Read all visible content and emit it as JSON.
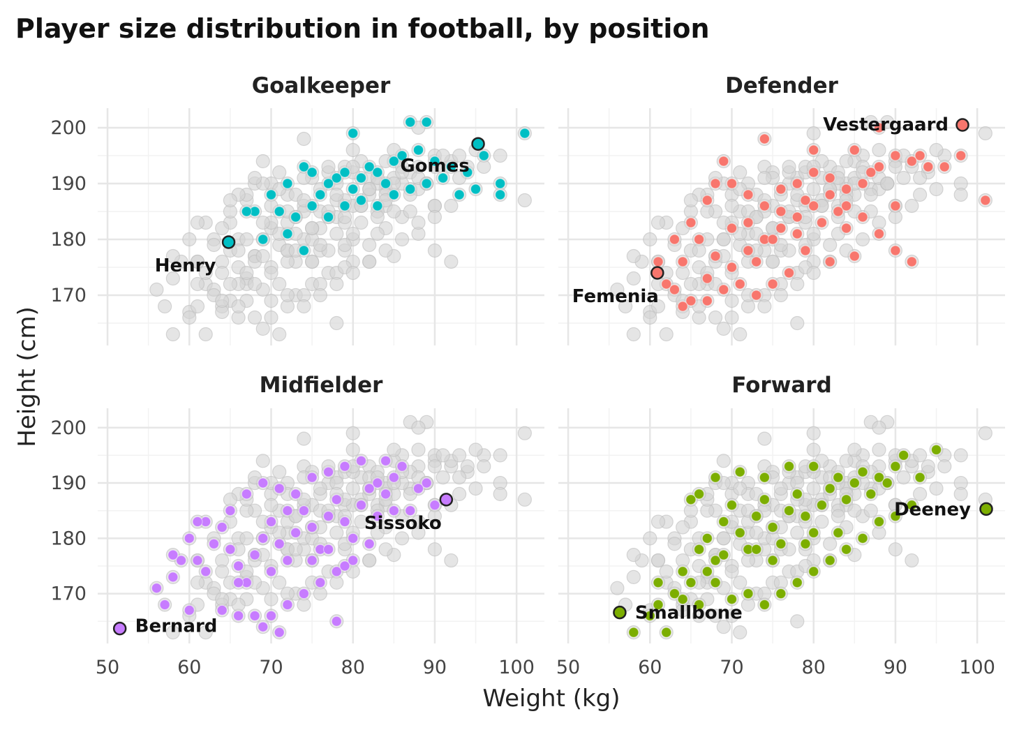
{
  "chart_data": {
    "type": "scatter",
    "title": "Player size distribution in football, by position",
    "xlabel": "Weight (kg)",
    "ylabel": "Height (cm)",
    "xlim": [
      48.8,
      103.4
    ],
    "ylim": [
      161,
      203.5
    ],
    "x_ticks": [
      "50",
      "60",
      "70",
      "80",
      "90",
      "100"
    ],
    "y_ticks": [
      "170",
      "180",
      "190",
      "200"
    ],
    "grid": true,
    "background_color": "#d3d3d3",
    "note_background": "all players shown in grey in every panel",
    "panels": [
      {
        "name": "Goalkeeper",
        "color": "#00BFC4",
        "points": [
          [
            78,
            191
          ],
          [
            80,
            189
          ],
          [
            82,
            193
          ],
          [
            76,
            188
          ],
          [
            84,
            190
          ],
          [
            86,
            195
          ],
          [
            88,
            196
          ],
          [
            90,
            194
          ],
          [
            92,
            193
          ],
          [
            94,
            192
          ],
          [
            96,
            195
          ],
          [
            98,
            190
          ],
          [
            98,
            188
          ],
          [
            101,
            199
          ],
          [
            87,
            201
          ],
          [
            89,
            201
          ],
          [
            80,
            199
          ],
          [
            74,
            193
          ],
          [
            72,
            190
          ],
          [
            70,
            188
          ],
          [
            68,
            185
          ],
          [
            67,
            185
          ],
          [
            72,
            181
          ],
          [
            74,
            178
          ],
          [
            75,
            186
          ],
          [
            77,
            184
          ],
          [
            79,
            186
          ],
          [
            81,
            187
          ],
          [
            83,
            186
          ],
          [
            85,
            188
          ],
          [
            87,
            189
          ],
          [
            89,
            190
          ],
          [
            91,
            191
          ],
          [
            93,
            188
          ],
          [
            95,
            189
          ],
          [
            79,
            192
          ],
          [
            81,
            191
          ],
          [
            83,
            192
          ],
          [
            85,
            194
          ],
          [
            77,
            190
          ],
          [
            75,
            192
          ],
          [
            73,
            184
          ],
          [
            71,
            185
          ],
          [
            69,
            180
          ]
        ],
        "highlights": [
          {
            "label": "Gomes",
            "x": 95.3,
            "y": 197.1
          },
          {
            "label": "Henry",
            "x": 64.8,
            "y": 179.5
          }
        ]
      },
      {
        "name": "Defender",
        "color": "#F8766D",
        "points": [
          [
            70,
            175
          ],
          [
            72,
            178
          ],
          [
            74,
            180
          ],
          [
            76,
            182
          ],
          [
            78,
            184
          ],
          [
            80,
            186
          ],
          [
            82,
            188
          ],
          [
            84,
            189
          ],
          [
            86,
            190
          ],
          [
            88,
            193
          ],
          [
            90,
            195
          ],
          [
            92,
            194
          ],
          [
            94,
            193
          ],
          [
            96,
            193
          ],
          [
            98,
            195
          ],
          [
            101,
            187
          ],
          [
            66,
            180
          ],
          [
            68,
            177
          ],
          [
            64,
            176
          ],
          [
            62,
            172
          ],
          [
            61,
            176
          ],
          [
            63,
            180
          ],
          [
            65,
            183
          ],
          [
            67,
            187
          ],
          [
            70,
            190
          ],
          [
            72,
            188
          ],
          [
            74,
            186
          ],
          [
            76,
            189
          ],
          [
            78,
            190
          ],
          [
            80,
            192
          ],
          [
            82,
            191
          ],
          [
            84,
            186
          ],
          [
            86,
            184
          ],
          [
            88,
            181
          ],
          [
            90,
            178
          ],
          [
            92,
            176
          ],
          [
            85,
            177
          ],
          [
            82,
            176
          ],
          [
            79,
            178
          ],
          [
            77,
            174
          ],
          [
            75,
            172
          ],
          [
            73,
            170
          ],
          [
            71,
            172
          ],
          [
            69,
            171
          ],
          [
            67,
            169
          ],
          [
            65,
            169
          ],
          [
            63,
            171
          ],
          [
            72,
            183
          ],
          [
            75,
            180
          ],
          [
            78,
            181
          ],
          [
            81,
            183
          ],
          [
            83,
            185
          ],
          [
            79,
            187
          ],
          [
            76,
            185
          ],
          [
            73,
            176
          ],
          [
            70,
            182
          ],
          [
            67,
            173
          ],
          [
            64,
            168
          ],
          [
            68,
            190
          ],
          [
            69,
            194
          ],
          [
            74,
            198
          ],
          [
            80,
            196
          ],
          [
            85,
            196
          ],
          [
            88,
            200
          ],
          [
            93,
            195
          ],
          [
            87,
            192
          ],
          [
            90,
            186
          ],
          [
            84,
            182
          ]
        ],
        "highlights": [
          {
            "label": "Vestergaard",
            "x": 98.2,
            "y": 200.5
          },
          {
            "label": "Femenia",
            "x": 60.9,
            "y": 174
          }
        ]
      },
      {
        "name": "Midfielder",
        "color": "#C77CFF",
        "points": [
          [
            56,
            171
          ],
          [
            57,
            168
          ],
          [
            58,
            173
          ],
          [
            60,
            167
          ],
          [
            61,
            176
          ],
          [
            62,
            174
          ],
          [
            63,
            179
          ],
          [
            64,
            182
          ],
          [
            65,
            178
          ],
          [
            66,
            175
          ],
          [
            67,
            172
          ],
          [
            68,
            177
          ],
          [
            69,
            180
          ],
          [
            70,
            183
          ],
          [
            71,
            179
          ],
          [
            72,
            176
          ],
          [
            73,
            181
          ],
          [
            74,
            185
          ],
          [
            75,
            182
          ],
          [
            76,
            178
          ],
          [
            77,
            184
          ],
          [
            78,
            187
          ],
          [
            79,
            183
          ],
          [
            80,
            180
          ],
          [
            81,
            186
          ],
          [
            82,
            189
          ],
          [
            83,
            190
          ],
          [
            84,
            188
          ],
          [
            85,
            191
          ],
          [
            86,
            193
          ],
          [
            88,
            189
          ],
          [
            89,
            190
          ],
          [
            90,
            186
          ],
          [
            87,
            185
          ],
          [
            85,
            185
          ],
          [
            83,
            184
          ],
          [
            80,
            176
          ],
          [
            78,
            174
          ],
          [
            76,
            172
          ],
          [
            74,
            170
          ],
          [
            72,
            168
          ],
          [
            70,
            166
          ],
          [
            68,
            166
          ],
          [
            66,
            166
          ],
          [
            64,
            167
          ],
          [
            62,
            183
          ],
          [
            60,
            180
          ],
          [
            61,
            183
          ],
          [
            59,
            176
          ],
          [
            58,
            177
          ],
          [
            65,
            185
          ],
          [
            67,
            188
          ],
          [
            69,
            190
          ],
          [
            71,
            189
          ],
          [
            73,
            188
          ],
          [
            75,
            191
          ],
          [
            77,
            192
          ],
          [
            79,
            193
          ],
          [
            81,
            194
          ],
          [
            84,
            194
          ],
          [
            72,
            185
          ],
          [
            70,
            174
          ],
          [
            75,
            176
          ],
          [
            77,
            178
          ],
          [
            79,
            175
          ],
          [
            82,
            179
          ],
          [
            78,
            165
          ],
          [
            71,
            163
          ],
          [
            69,
            164
          ],
          [
            66,
            172
          ]
        ],
        "highlights": [
          {
            "label": "Sissoko",
            "x": 91.4,
            "y": 187
          },
          {
            "label": "Bernard",
            "x": 51.5,
            "y": 163.7
          }
        ]
      },
      {
        "name": "Forward",
        "color": "#7CAE00",
        "points": [
          [
            58,
            163
          ],
          [
            60,
            166
          ],
          [
            61,
            168
          ],
          [
            62,
            163
          ],
          [
            63,
            170
          ],
          [
            64,
            174
          ],
          [
            65,
            172
          ],
          [
            66,
            178
          ],
          [
            67,
            180
          ],
          [
            68,
            176
          ],
          [
            69,
            183
          ],
          [
            70,
            186
          ],
          [
            71,
            181
          ],
          [
            72,
            178
          ],
          [
            73,
            184
          ],
          [
            74,
            187
          ],
          [
            75,
            182
          ],
          [
            76,
            179
          ],
          [
            77,
            185
          ],
          [
            78,
            188
          ],
          [
            79,
            184
          ],
          [
            80,
            181
          ],
          [
            81,
            186
          ],
          [
            82,
            189
          ],
          [
            83,
            191
          ],
          [
            84,
            187
          ],
          [
            85,
            190
          ],
          [
            86,
            192
          ],
          [
            87,
            188
          ],
          [
            88,
            191
          ],
          [
            89,
            190
          ],
          [
            90,
            193
          ],
          [
            91,
            195
          ],
          [
            93,
            191
          ],
          [
            95,
            196
          ],
          [
            92,
            186
          ],
          [
            90,
            184
          ],
          [
            88,
            183
          ],
          [
            86,
            180
          ],
          [
            84,
            178
          ],
          [
            82,
            176
          ],
          [
            80,
            174
          ],
          [
            78,
            172
          ],
          [
            76,
            170
          ],
          [
            74,
            168
          ],
          [
            72,
            170
          ],
          [
            70,
            169
          ],
          [
            68,
            172
          ],
          [
            66,
            188
          ],
          [
            65,
            187
          ],
          [
            68,
            191
          ],
          [
            71,
            192
          ],
          [
            74,
            191
          ],
          [
            77,
            193
          ],
          [
            80,
            193
          ],
          [
            67,
            174
          ],
          [
            69,
            177
          ],
          [
            73,
            178
          ],
          [
            75,
            176
          ],
          [
            79,
            179
          ],
          [
            83,
            181
          ],
          [
            61,
            172
          ],
          [
            64,
            169
          ],
          [
            66,
            168
          ]
        ],
        "highlights": [
          {
            "label": "Deeney",
            "x": 101.1,
            "y": 185.3
          },
          {
            "label": "Smallbone",
            "x": 56.3,
            "y": 166.6
          }
        ]
      }
    ]
  }
}
